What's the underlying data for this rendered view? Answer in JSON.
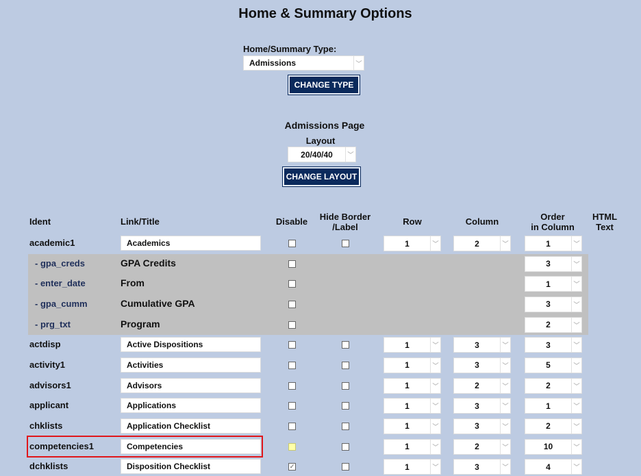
{
  "page_title": "Home & Summary Options",
  "type_label": "Home/Summary Type:",
  "type_value": "Admissions",
  "change_type": "CHANGE TYPE",
  "section_title": "Admissions Page",
  "layout_label": "Layout",
  "layout_value": "20/40/40",
  "change_layout": "CHANGE LAYOUT",
  "headers": {
    "ident": "Ident",
    "link": "Link/Title",
    "disable": "Disable",
    "hide1": "Hide Border",
    "hide2": "/Label",
    "row": "Row",
    "column": "Column",
    "order1": "Order",
    "order2": "in Column",
    "html1": "HTML",
    "html2": "Text"
  },
  "highlight_color": "#e0161a",
  "rows": [
    {
      "ident": "academic1",
      "title": "Academics",
      "disabled": false,
      "hide": false,
      "row": "1",
      "column": "2",
      "order": "1"
    },
    {
      "ident": "- gpa_creds",
      "title": "GPA Credits",
      "sub": true,
      "disabled": false,
      "order": "3"
    },
    {
      "ident": "- enter_date",
      "title": "From",
      "sub": true,
      "disabled": false,
      "order": "1"
    },
    {
      "ident": "- gpa_cumm",
      "title": "Cumulative GPA",
      "sub": true,
      "disabled": false,
      "order": "3"
    },
    {
      "ident": "- prg_txt",
      "title": "Program",
      "sub": true,
      "disabled": false,
      "order": "2"
    },
    {
      "ident": "actdisp",
      "title": "Active Dispositions",
      "disabled": false,
      "hide": false,
      "row": "1",
      "column": "3",
      "order": "3"
    },
    {
      "ident": "activity1",
      "title": "Activities",
      "disabled": false,
      "hide": false,
      "row": "1",
      "column": "3",
      "order": "5"
    },
    {
      "ident": "advisors1",
      "title": "Advisors",
      "disabled": false,
      "hide": false,
      "row": "1",
      "column": "2",
      "order": "2"
    },
    {
      "ident": "applicant",
      "title": "Applications",
      "disabled": false,
      "hide": false,
      "row": "1",
      "column": "3",
      "order": "1"
    },
    {
      "ident": "chklists",
      "title": "Application Checklist",
      "disabled": false,
      "hide": false,
      "row": "1",
      "column": "3",
      "order": "2"
    },
    {
      "ident": "competencies1",
      "title": "Competencies",
      "disabled": false,
      "hide": false,
      "row": "1",
      "column": "2",
      "order": "10",
      "highlighted": true
    },
    {
      "ident": "dchklists",
      "title": "Disposition Checklist",
      "disabled": true,
      "hide": false,
      "row": "1",
      "column": "3",
      "order": "4"
    }
  ]
}
